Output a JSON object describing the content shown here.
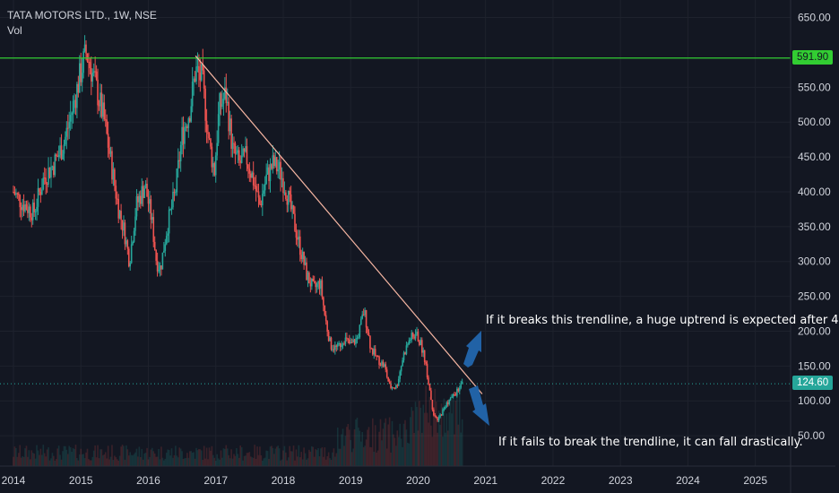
{
  "legend": {
    "title": "TATA MOTORS LTD., 1W, NSE",
    "indicator": "Vol"
  },
  "price_tags": {
    "resistance": "591.90",
    "current": "124.60"
  },
  "annotations": {
    "upper": "If it breaks this trendline,  a huge uptrend is expected after 4",
    "lower": "If it fails to break the trendline, it can fall drastically."
  },
  "colors": {
    "background": "#131722",
    "up": "#26a69a",
    "down": "#ef5350",
    "resistance": "#32cd32",
    "current": "#26a69a",
    "trendline": "#f7b7a3",
    "arrow": "#2162a6",
    "text": "#d1d4dc"
  },
  "chart_data": {
    "type": "candlestick",
    "title": "TATA MOTORS LTD., 1W, NSE",
    "x_ticks": [
      "2014",
      "2015",
      "2016",
      "2017",
      "2018",
      "2019",
      "2020",
      "2021",
      "2022",
      "2023",
      "2024",
      "2025"
    ],
    "y_ticks": [
      "50.00",
      "100.00",
      "150.00",
      "200.00",
      "250.00",
      "300.00",
      "350.00",
      "400.00",
      "450.00",
      "500.00",
      "550.00",
      "650.00"
    ],
    "ylim": [
      0,
      670
    ],
    "xlim": [
      2014.0,
      2025.35
    ],
    "horizontal_lines": [
      {
        "label": "591.90",
        "value": 591.9,
        "style": "solid"
      },
      {
        "label": "124.60",
        "value": 124.6,
        "style": "dotted"
      }
    ],
    "trendline": {
      "from": [
        2016.7,
        595
      ],
      "to": [
        2020.95,
        110
      ]
    },
    "price_path": [
      [
        2014.0,
        400
      ],
      [
        2014.12,
        385
      ],
      [
        2014.3,
        370
      ],
      [
        2014.45,
        420
      ],
      [
        2014.6,
        440
      ],
      [
        2014.75,
        470
      ],
      [
        2014.9,
        530
      ],
      [
        2015.02,
        580
      ],
      [
        2015.08,
        600
      ],
      [
        2015.2,
        560
      ],
      [
        2015.35,
        500
      ],
      [
        2015.45,
        440
      ],
      [
        2015.55,
        380
      ],
      [
        2015.65,
        340
      ],
      [
        2015.72,
        300
      ],
      [
        2015.82,
        380
      ],
      [
        2015.95,
        410
      ],
      [
        2016.05,
        360
      ],
      [
        2016.12,
        300
      ],
      [
        2016.18,
        290
      ],
      [
        2016.28,
        350
      ],
      [
        2016.4,
        400
      ],
      [
        2016.5,
        480
      ],
      [
        2016.62,
        520
      ],
      [
        2016.7,
        575
      ],
      [
        2016.8,
        560
      ],
      [
        2016.9,
        470
      ],
      [
        2016.98,
        430
      ],
      [
        2017.05,
        520
      ],
      [
        2017.15,
        540
      ],
      [
        2017.25,
        460
      ],
      [
        2017.35,
        440
      ],
      [
        2017.45,
        450
      ],
      [
        2017.55,
        420
      ],
      [
        2017.65,
        380
      ],
      [
        2017.75,
        420
      ],
      [
        2017.85,
        440
      ],
      [
        2017.95,
        430
      ],
      [
        2018.05,
        400
      ],
      [
        2018.15,
        360
      ],
      [
        2018.25,
        320
      ],
      [
        2018.35,
        280
      ],
      [
        2018.45,
        260
      ],
      [
        2018.55,
        270
      ],
      [
        2018.62,
        220
      ],
      [
        2018.7,
        180
      ],
      [
        2018.8,
        175
      ],
      [
        2018.9,
        190
      ],
      [
        2019.0,
        180
      ],
      [
        2019.1,
        190
      ],
      [
        2019.2,
        230
      ],
      [
        2019.3,
        175
      ],
      [
        2019.4,
        160
      ],
      [
        2019.5,
        150
      ],
      [
        2019.58,
        120
      ],
      [
        2019.68,
        120
      ],
      [
        2019.78,
        165
      ],
      [
        2019.88,
        190
      ],
      [
        2019.98,
        195
      ],
      [
        2020.08,
        170
      ],
      [
        2020.15,
        130
      ],
      [
        2020.22,
        85
      ],
      [
        2020.28,
        70
      ],
      [
        2020.36,
        85
      ],
      [
        2020.45,
        100
      ],
      [
        2020.55,
        110
      ],
      [
        2020.62,
        120
      ],
      [
        2020.66,
        124.6
      ]
    ]
  }
}
